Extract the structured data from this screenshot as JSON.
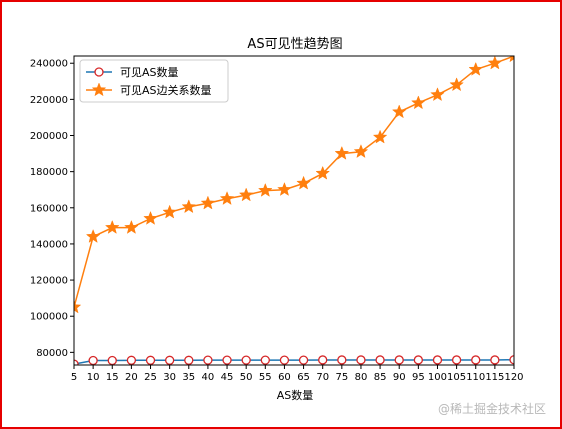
{
  "chart_data": {
    "type": "line",
    "title": "AS可见性趋势图",
    "xlabel": "AS数量",
    "ylabel": "",
    "x": [
      5,
      10,
      15,
      20,
      25,
      30,
      35,
      40,
      45,
      50,
      55,
      60,
      65,
      70,
      75,
      80,
      85,
      90,
      95,
      100,
      105,
      110,
      115,
      120
    ],
    "xlim": [
      5,
      120
    ],
    "ylim": [
      73000,
      244000
    ],
    "yticks": [
      80000,
      100000,
      120000,
      140000,
      160000,
      180000,
      200000,
      220000,
      240000
    ],
    "series": [
      {
        "name": "可见AS数量",
        "marker": "circle",
        "line_color": "#1f77b4",
        "marker_edge": "#d62728",
        "values": [
          73500,
          75500,
          75500,
          75600,
          75600,
          75600,
          75600,
          75700,
          75700,
          75700,
          75700,
          75700,
          75700,
          75800,
          75800,
          75800,
          75800,
          75800,
          75800,
          75800,
          75800,
          75800,
          75800,
          75900
        ]
      },
      {
        "name": "可见AS边关系数量",
        "marker": "star",
        "line_color": "#ff7f0e",
        "values": [
          105000,
          144000,
          149000,
          149000,
          154000,
          157500,
          160500,
          162500,
          165000,
          167000,
          169500,
          170000,
          173500,
          179000,
          190000,
          191000,
          199000,
          213000,
          218000,
          222500,
          228000,
          236500,
          240000,
          244000
        ]
      }
    ],
    "grid": false,
    "legend_position": "top-left"
  },
  "watermark": "@稀土掘金技术社区"
}
